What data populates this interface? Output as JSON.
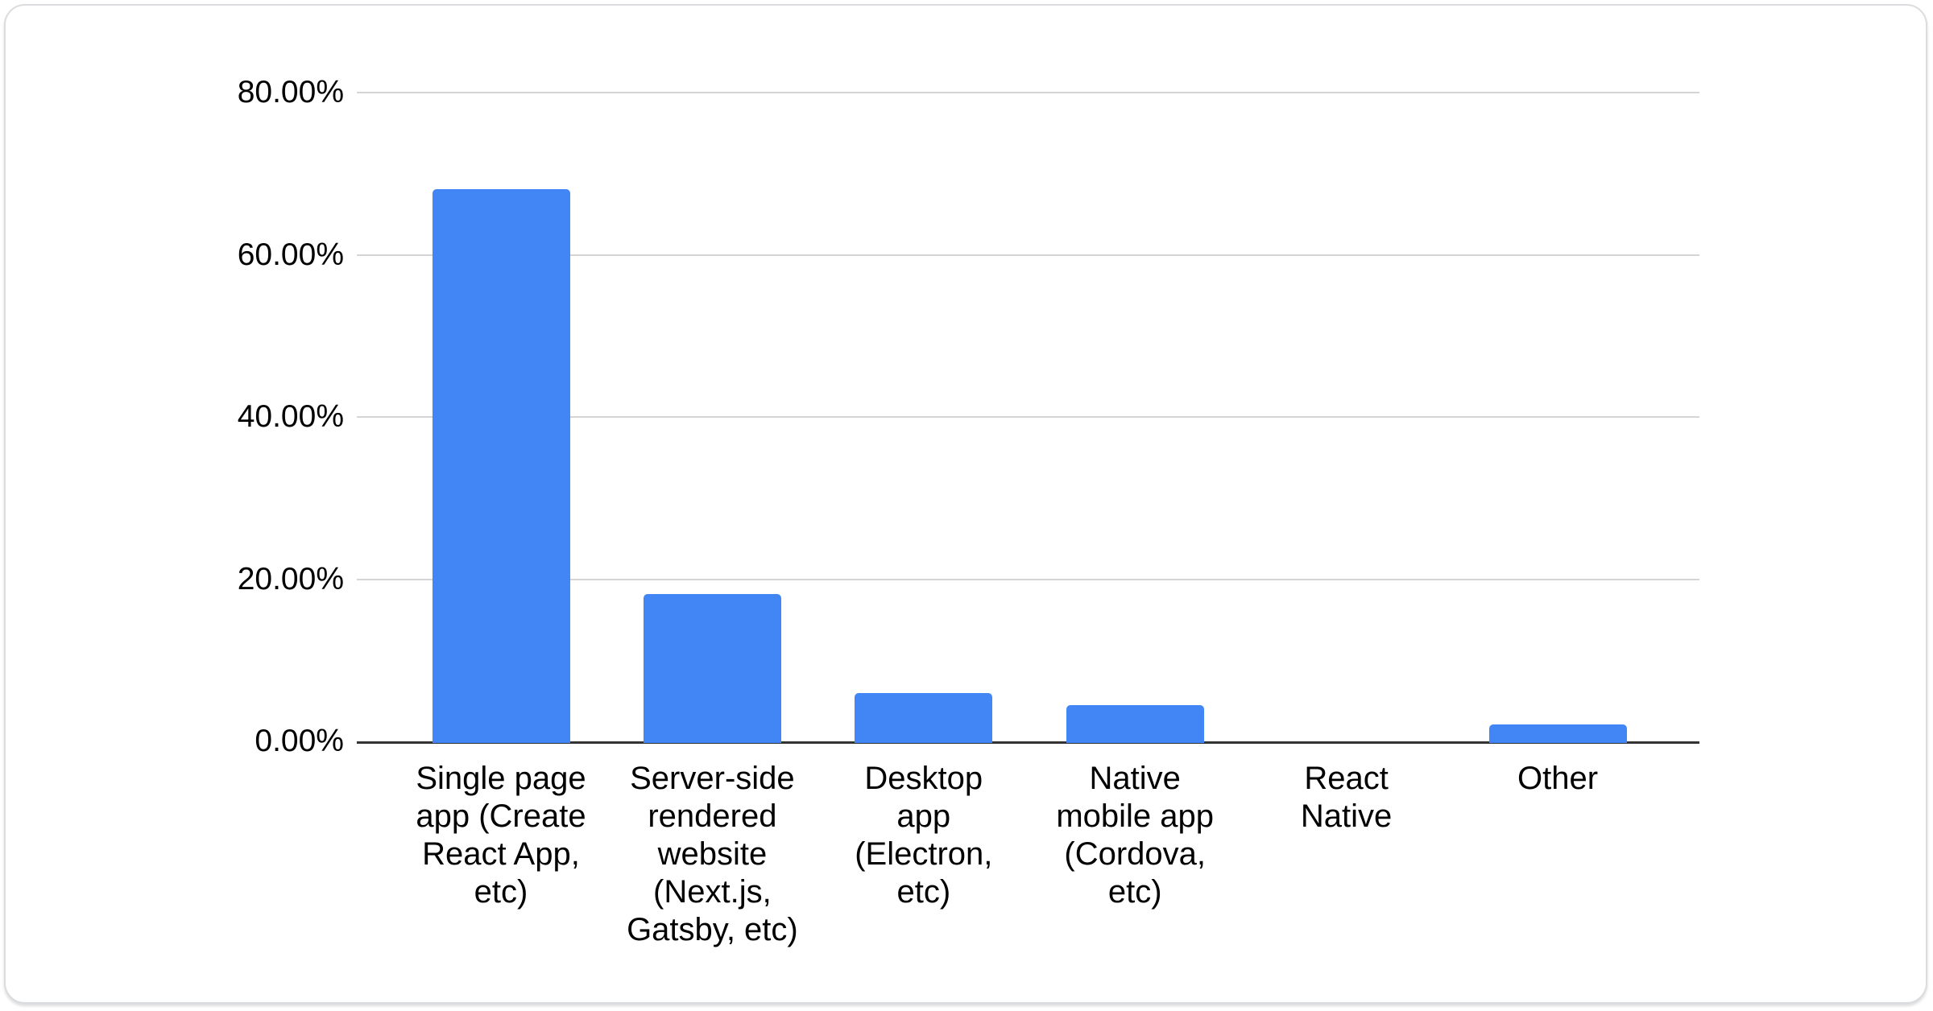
{
  "chart_data": {
    "type": "bar",
    "title": "",
    "subtitle": "",
    "xlabel": "",
    "ylabel": "",
    "legend_position": "none",
    "grid": true,
    "value_unit": "%",
    "ylim": [
      0,
      80
    ],
    "categories": [
      "Single page app (Create React App, etc)",
      "Server-side rendered website (Next.js, Gatsby, etc)",
      "Desktop app (Electron, etc)",
      "Native mobile app (Cordova, etc)",
      "React Native",
      "Other"
    ],
    "category_display_lines": [
      "Single page\napp (Create\nReact App,\netc)",
      "Server-side\nrendered\nwebsite\n(Next.js,\nGatsby, etc)",
      "Desktop\napp\n(Electron,\netc)",
      "Native\nmobile app\n(Cordova,\netc)",
      "React\nNative",
      "Other"
    ],
    "values": [
      68.3,
      18.4,
      6.2,
      4.7,
      0.0,
      2.3
    ],
    "yticks": [
      {
        "value": 80,
        "label": "80.00%"
      },
      {
        "value": 60,
        "label": "60.00%"
      },
      {
        "value": 40,
        "label": "40.00%"
      },
      {
        "value": 20,
        "label": "20.00%"
      },
      {
        "value": 0,
        "label": "0.00%"
      }
    ],
    "colors": {
      "bar": "#4285f4",
      "grid_line": "#d5d5d5",
      "axis_line": "#333333",
      "tick_label": "#000000",
      "category_label": "#000000",
      "card_background": "#ffffff",
      "card_border": "#dadce0"
    }
  }
}
